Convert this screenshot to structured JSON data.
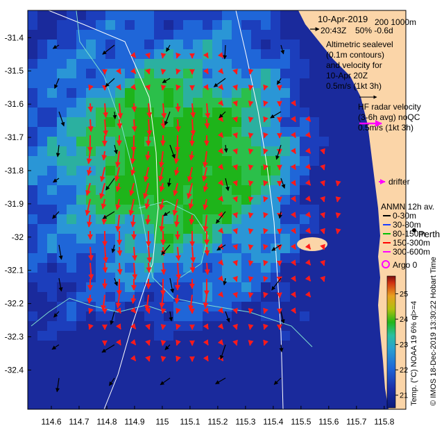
{
  "map": {
    "date": "10-Apr-2019",
    "time": "20:43Z",
    "pct_info": "50% -0.6d",
    "isobaths_label": "200  1000m",
    "altimetric_lines": [
      "Altimetric sealevel",
      "(0.1m contours)",
      "and velocity for",
      "10-Apr 20Z",
      "0.5m/s (1kt 3h)"
    ],
    "hf_lines": [
      "HF radar velocity",
      "(3-6h avg) noQC",
      "0.5m/s (1kt 3h)"
    ],
    "drifter_label": "drifter",
    "anmn_title": "ANMN 12h av.",
    "anmn_depths": [
      "0-30m",
      "30-80m",
      "80-150m",
      "150-300m",
      "300-600m"
    ],
    "anmn_colors": [
      "#000000",
      "#1a3cff",
      "#00c000",
      "#ff0000",
      "#ff00ff"
    ],
    "place_name": "Perth",
    "argo_label": "Argo 0",
    "colorbar_label": "Temp. (°C) NOAA 19 6% ql>=4",
    "credit": "© IMOS 18-Dec-2019 13:30:22 Hobart Time",
    "colors": {
      "land": "#fbd5a8",
      "sea_warm": "#22b61a",
      "sea_mid": "#2aa0d0",
      "sea_cold": "#1c2ea8",
      "hf_arrow": "#ff1a1a",
      "drifter": "#ff00ff",
      "argo": "#ff00ff",
      "isobath": "#ffffff"
    }
  },
  "chart_data": {
    "type": "heatmap",
    "xlabel": "",
    "ylabel": "",
    "xlim": [
      114.515,
      115.878
    ],
    "ylim": [
      -32.518,
      -31.318
    ],
    "x_ticks": [
      "114.6",
      "114.7",
      "114.8",
      "114.9",
      "115",
      "115.1",
      "115.2",
      "115.3",
      "115.4",
      "115.5",
      "115.6",
      "115.7",
      "115.8"
    ],
    "y_ticks": [
      "-31.4",
      "-31.5",
      "-31.6",
      "-31.7",
      "-31.8",
      "-31.9",
      "-32",
      "-32.1",
      "-32.2",
      "-32.3",
      "-32.4"
    ],
    "colorbar": {
      "min": 20.5,
      "max": 25.7,
      "ticks": [
        "21",
        "22",
        "23",
        "24",
        "25"
      ]
    }
  }
}
